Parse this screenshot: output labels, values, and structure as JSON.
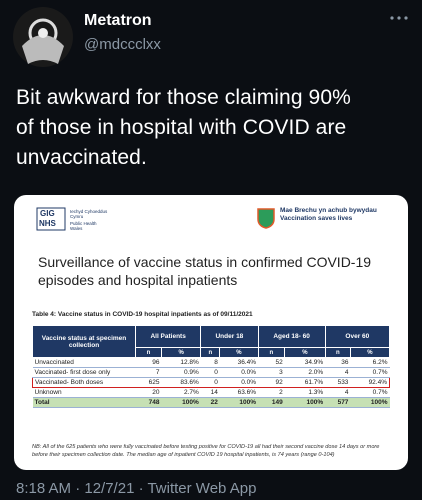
{
  "tweet": {
    "author": {
      "name": "Metatron",
      "handle": "@mdccclxx"
    },
    "text": [
      "Bit awkward for those claiming 90%",
      "of those in hospital with COVID are",
      "unvaccinated."
    ],
    "image": {
      "logo_left": {
        "mark_top": "GIG",
        "mark_bottom": "NHS",
        "org_welsh": "Iechyd Cyhoeddus Cymru",
        "org_english": "Public Health Wales"
      },
      "logo_right": {
        "welsh": "Mae Brechu yn achub bywydau",
        "english": "Vaccination saves lives"
      },
      "title": "Surveillance of vaccine status in confirmed COVID-19 episodes and hospital inpatients",
      "table_title": "Table 4: Vaccine status in COVID-19 hospital inpatients as of 09/11/2021",
      "table": {
        "header": [
          "Vaccine status at specimen collection",
          "All Patients",
          "Under 18",
          "Aged 18- 60",
          "Over 60"
        ],
        "sub_header": [
          "n",
          "%",
          "n",
          "%",
          "n",
          "%",
          "n",
          "%"
        ],
        "rows": [
          [
            "Unvaccinated",
            "96",
            "12.8%",
            "8",
            "36.4%",
            "52",
            "34.9%",
            "36",
            "6.2%"
          ],
          [
            "Vaccinated- first dose only",
            "7",
            "0.9%",
            "0",
            "0.0%",
            "3",
            "2.0%",
            "4",
            "0.7%"
          ],
          [
            "Vaccinated- Both doses",
            "625",
            "83.6%",
            "0",
            "0.0%",
            "92",
            "61.7%",
            "533",
            "92.4%"
          ],
          [
            "Unknown",
            "20",
            "2.7%",
            "14",
            "63.6%",
            "2",
            "1.3%",
            "4",
            "0.7%"
          ],
          [
            "Total",
            "748",
            "100%",
            "22",
            "100%",
            "149",
            "100%",
            "577",
            "100%"
          ]
        ]
      },
      "footnote": "NB: All of the 625 patients who were fully vaccinated before testing positive for COVID-19 all had their second vaccine dose 14 days or more before their specimen collection date. The median age of inpatient COVID 19 hospital inpatients, is 74 years (range 0-104)"
    },
    "footer": "8:18 AM · 12/7/21 · Twitter Web App"
  }
}
